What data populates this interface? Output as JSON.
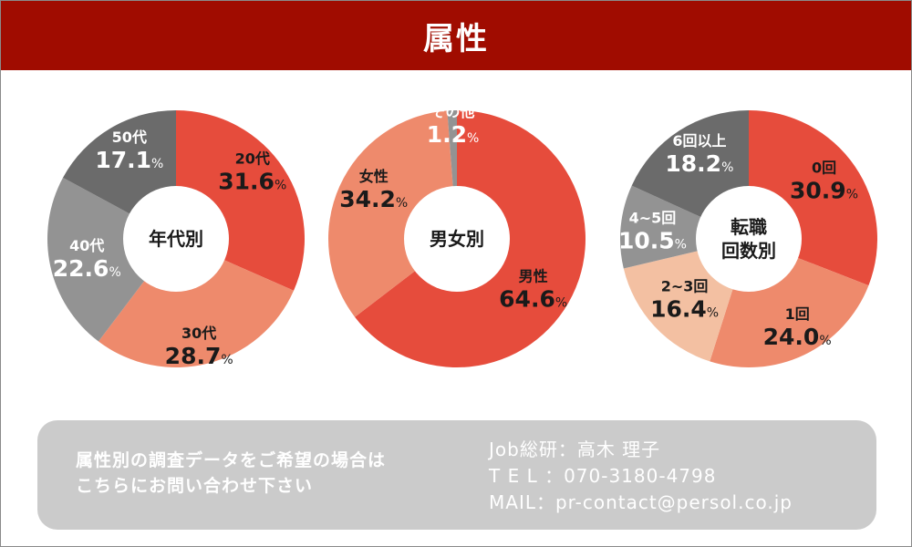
{
  "header": {
    "title": "属性"
  },
  "colors": {
    "header_bg": "#a00c00",
    "red": "#e64c3c",
    "salmon": "#ee8a6c",
    "peach": "#f3c0a2",
    "gray_mid": "#939393",
    "gray_dark": "#6b6b6b",
    "footer_bg": "#cbcbcb"
  },
  "chart_data": [
    {
      "type": "pie",
      "center_label": "年代別",
      "slices": [
        {
          "label": "20代",
          "value": 31.6,
          "display": "31.6",
          "color": "#e64c3c"
        },
        {
          "label": "30代",
          "value": 28.7,
          "display": "28.7",
          "color": "#ee8a6c"
        },
        {
          "label": "40代",
          "value": 22.6,
          "display": "22.6",
          "color": "#939393"
        },
        {
          "label": "50代",
          "value": 17.1,
          "display": "17.1",
          "color": "#6b6b6b"
        }
      ]
    },
    {
      "type": "pie",
      "center_label": "男女別",
      "slices": [
        {
          "label": "男性",
          "value": 64.6,
          "display": "64.6",
          "color": "#e64c3c"
        },
        {
          "label": "女性",
          "value": 34.2,
          "display": "34.2",
          "color": "#ee8a6c"
        },
        {
          "label": "その他",
          "value": 1.2,
          "display": "1.2",
          "color": "#939393"
        }
      ]
    },
    {
      "type": "pie",
      "center_label": "転職回数別",
      "slices": [
        {
          "label": "0回",
          "value": 30.9,
          "display": "30.9",
          "color": "#e64c3c"
        },
        {
          "label": "1回",
          "value": 24.0,
          "display": "24.0",
          "color": "#ee8a6c"
        },
        {
          "label": "2~3回",
          "value": 16.4,
          "display": "16.4",
          "color": "#f3c0a2"
        },
        {
          "label": "4~5回",
          "value": 10.5,
          "display": "10.5",
          "color": "#939393"
        },
        {
          "label": "6回以上",
          "value": 18.2,
          "display": "18.2",
          "color": "#6b6b6b"
        }
      ]
    }
  ],
  "percent_sign": "%",
  "footer": {
    "note_line1": "属性別の調査データをご希望の場合は",
    "note_line2": "こちらにお問い合わせ下さい",
    "contact_line1": "Job総研：高木 理子",
    "contact_line2": "T E L ：070-3180-4798",
    "contact_line3": "MAIL：pr-contact@persol.co.jp"
  }
}
